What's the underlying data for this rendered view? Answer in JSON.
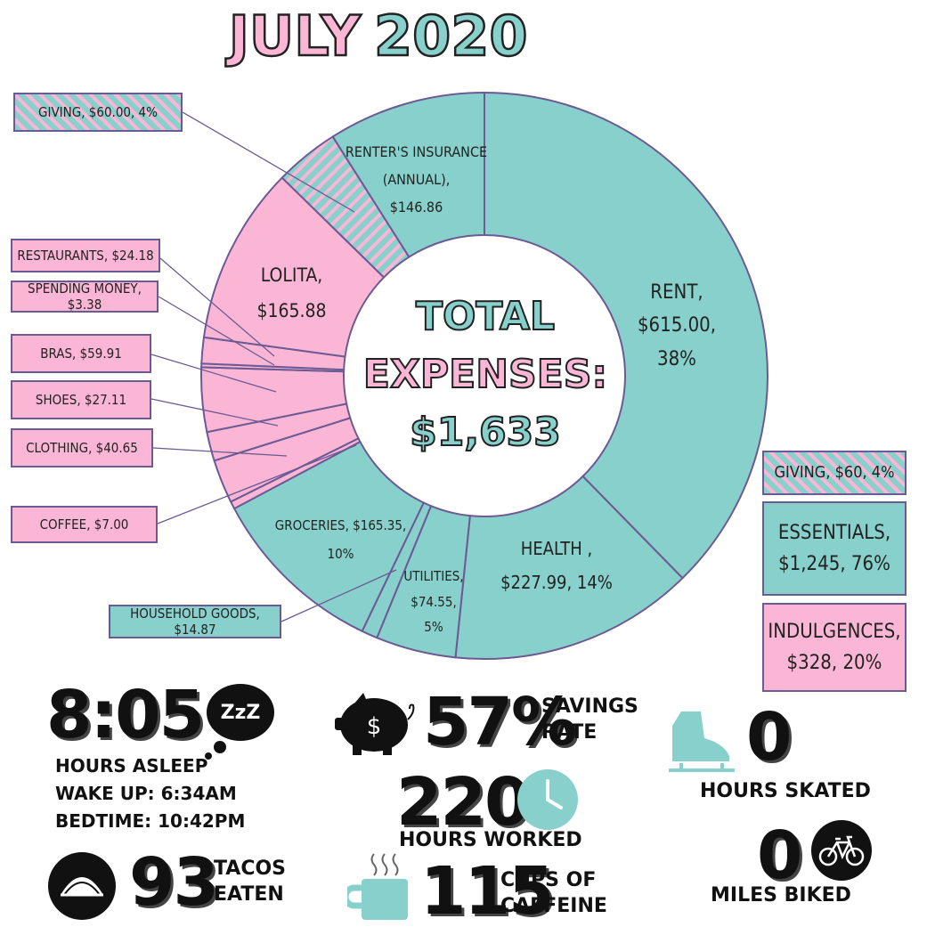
{
  "title": {
    "part1": "JULY",
    "part2": "2020"
  },
  "center": {
    "line1": "TOTAL",
    "line2": "EXPENSES:",
    "line3": "$1,633"
  },
  "colors": {
    "teal": "#88d0cb",
    "pink": "#fbb6d6",
    "border": "#6b5a94",
    "dark": "#111111"
  },
  "chart_data": {
    "type": "pie",
    "donut": true,
    "title": "TOTAL EXPENSES: $1,633",
    "slices": [
      {
        "name": "RENT",
        "value": 615.0,
        "group": "essential"
      },
      {
        "name": "HEALTH",
        "value": 227.99,
        "group": "essential"
      },
      {
        "name": "UTILITIES",
        "value": 74.55,
        "group": "essential"
      },
      {
        "name": "HOUSEHOLD GOODS",
        "value": 14.87,
        "group": "essential"
      },
      {
        "name": "GROCERIES",
        "value": 165.35,
        "group": "essential"
      },
      {
        "name": "COFFEE",
        "value": 7.0,
        "group": "indulgence"
      },
      {
        "name": "CLOTHING",
        "value": 40.65,
        "group": "indulgence"
      },
      {
        "name": "SHOES",
        "value": 27.11,
        "group": "indulgence"
      },
      {
        "name": "BRAS",
        "value": 59.91,
        "group": "indulgence"
      },
      {
        "name": "SPENDING MONEY",
        "value": 3.38,
        "group": "indulgence"
      },
      {
        "name": "RESTAURANTS",
        "value": 24.18,
        "group": "indulgence"
      },
      {
        "name": "LOLITA",
        "value": 165.88,
        "group": "indulgence"
      },
      {
        "name": "GIVING",
        "value": 60.0,
        "group": "giving"
      },
      {
        "name": "RENTER'S INSURANCE (ANNUAL)",
        "value": 146.86,
        "group": "essential"
      }
    ]
  },
  "slice_labels": {
    "rent": [
      "RENT,",
      "$615.00,",
      "38%"
    ],
    "health": [
      "HEALTH ,",
      "$227.99, 14%"
    ],
    "utilities": [
      "UTILITIES,",
      "$74.55,",
      "5%"
    ],
    "groceries": [
      "GROCERIES, $165.35,",
      "10%"
    ],
    "lolita": [
      "LOLITA,",
      "$165.88"
    ],
    "renters": [
      "RENTER'S INSURANCE",
      "(ANNUAL),",
      "$146.86"
    ]
  },
  "callouts": {
    "giving": "GIVING, $60.00, 4%",
    "restaurants": "RESTAURANTS, $24.18",
    "spending": "SPENDING MONEY, $3.38",
    "bras": "BRAS, $59.91",
    "shoes": "SHOES, $27.11",
    "clothing": "CLOTHING, $40.65",
    "coffee": "COFFEE, $7.00",
    "household": "HOUSEHOLD GOODS, $14.87"
  },
  "summary": {
    "giving": "GIVING, $60, 4%",
    "essentials": [
      "ESSENTIALS,",
      "$1,245, 76%"
    ],
    "indulgences": [
      "INDULGENCES,",
      "$328, 20%"
    ]
  },
  "stats": {
    "sleep": {
      "value": "8:05",
      "zzz": "ZzZ",
      "label": "HOURS ASLEEP",
      "wake": "WAKE UP: 6:34AM",
      "bed": "BEDTIME: 10:42PM"
    },
    "tacos": {
      "value": "93",
      "label1": "TACOS",
      "label2": "EATEN"
    },
    "savings": {
      "value": "57%",
      "label1": "SAVINGS",
      "label2": "RATE",
      "symbol": "$"
    },
    "work": {
      "value": "220",
      "label": "HOURS WORKED"
    },
    "caffeine": {
      "value": "115",
      "label1": "CUPS OF",
      "label2": "CAFFEINE"
    },
    "skate": {
      "value": "0",
      "label": "HOURS SKATED"
    },
    "bike": {
      "value": "0",
      "label": "MILES BIKED"
    }
  }
}
